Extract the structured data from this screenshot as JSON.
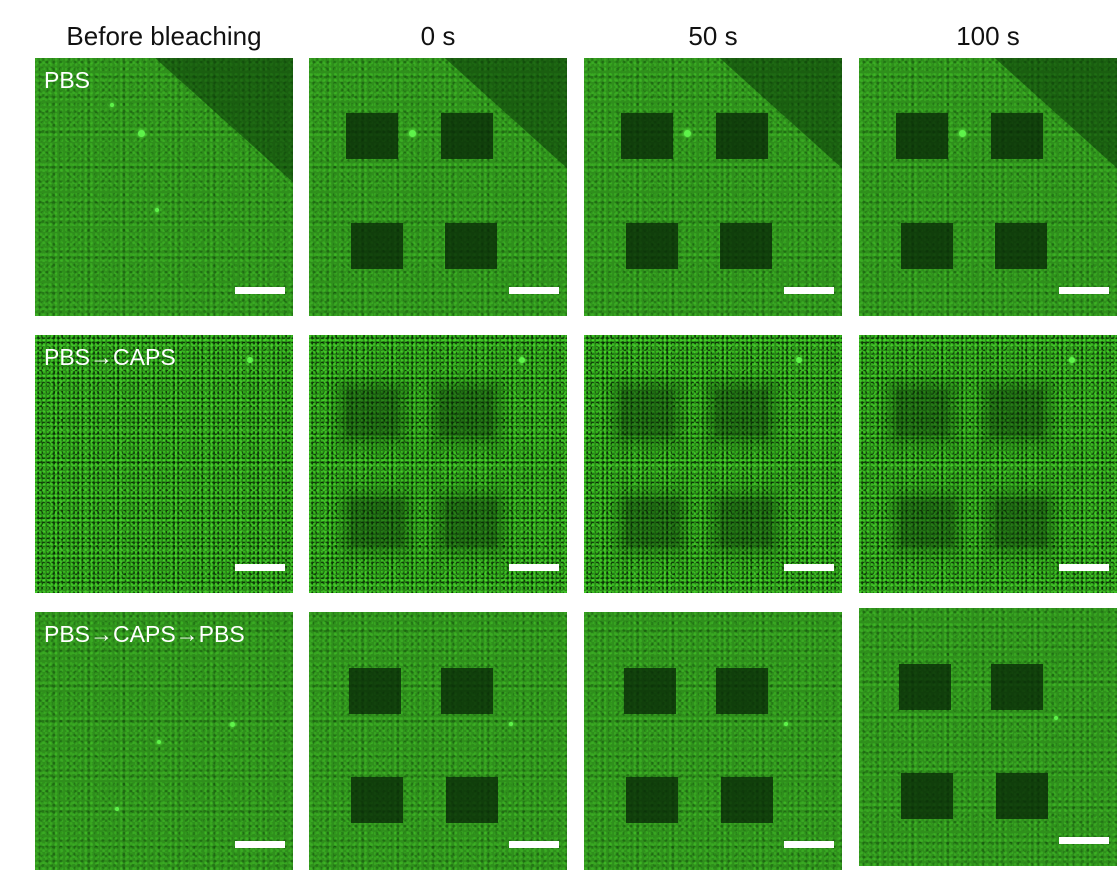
{
  "column_headers": [
    "Before bleaching",
    "0 s",
    "50 s",
    "100 s"
  ],
  "row_labels": [
    "PBS",
    "PBS→CAPS",
    "PBS→CAPS→PBS"
  ],
  "colors": {
    "fluorescence_green": "#2f8f1c",
    "bleached_region": "#082806",
    "scale_bar": "#ffffff",
    "background": "#ffffff"
  }
}
